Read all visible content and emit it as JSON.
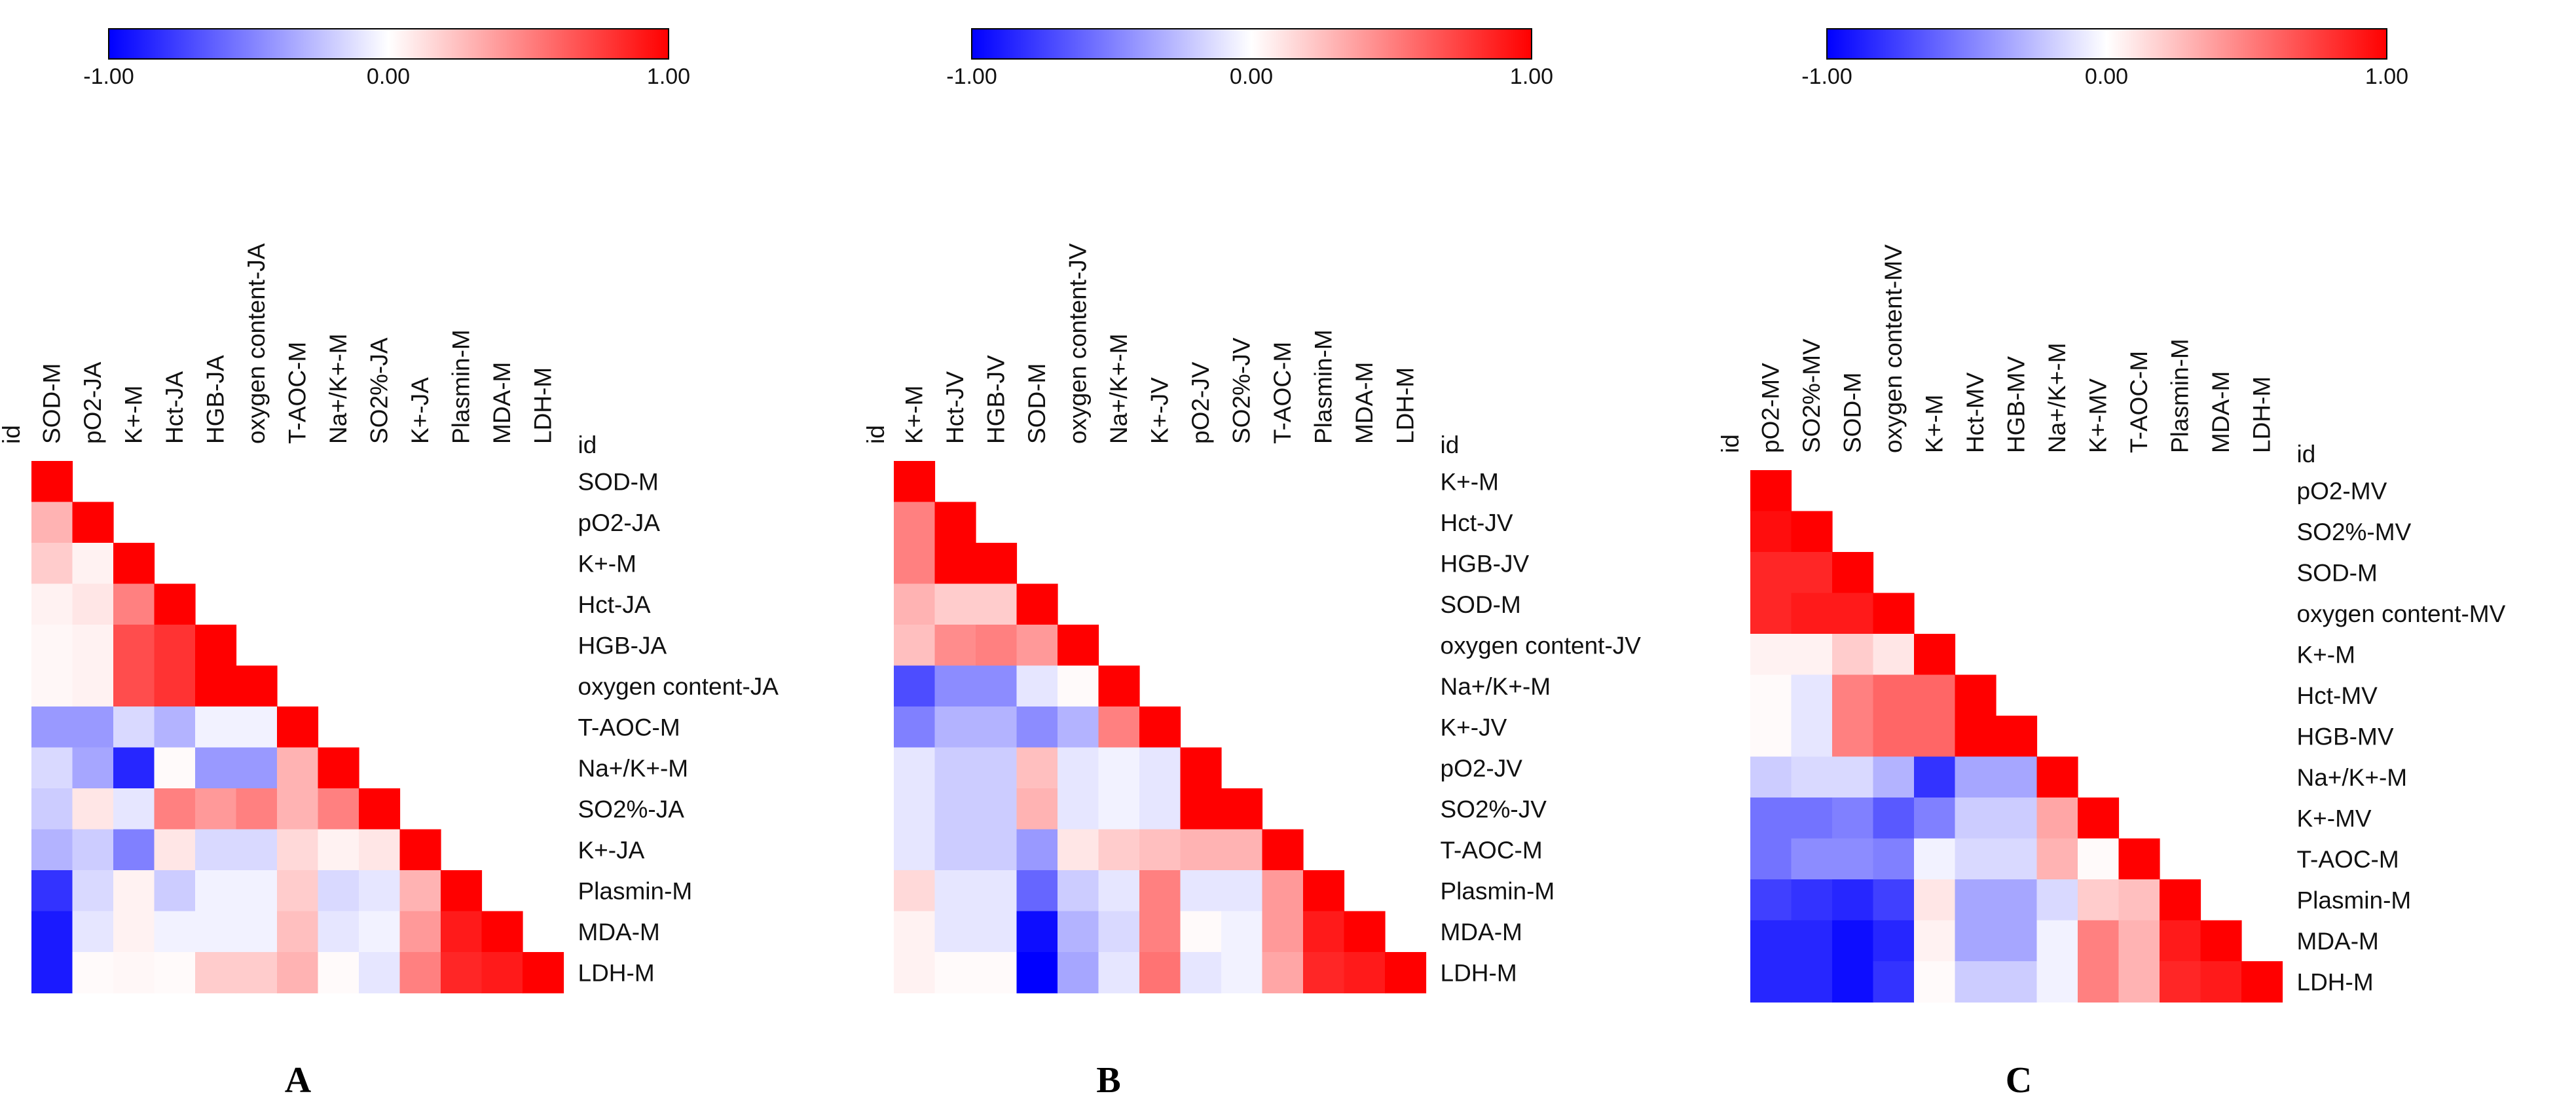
{
  "colorscale": {
    "min_label": "-1.00",
    "mid_label": "0.00",
    "max_label": "1.00",
    "min": -1,
    "max": 1,
    "colors": [
      "#0000ff",
      "#ffffff",
      "#ff0000"
    ]
  },
  "corner_label": "id",
  "chart_data": [
    {
      "type": "heatmap",
      "panel": "A",
      "title": "",
      "variables": [
        "SOD-M",
        "pO2-JA",
        "K+-M",
        "Hct-JA",
        "HGB-JA",
        "oxygen content-JA",
        "T-AOC-M",
        "Na+/K+-M",
        "SO2%-JA",
        "K+-JA",
        "Plasmin-M",
        "MDA-M",
        "LDH-M"
      ],
      "matrix": [
        [
          1
        ],
        [
          0.3,
          1
        ],
        [
          0.2,
          0.05,
          1
        ],
        [
          0.05,
          0.1,
          0.5,
          1
        ],
        [
          0.03,
          0.05,
          0.7,
          0.8,
          1
        ],
        [
          0.03,
          0.05,
          0.7,
          0.8,
          1,
          1
        ],
        [
          -0.4,
          -0.4,
          -0.15,
          -0.3,
          -0.05,
          -0.05,
          1
        ],
        [
          -0.15,
          -0.35,
          -0.85,
          0.02,
          -0.4,
          -0.4,
          0.3,
          1
        ],
        [
          -0.2,
          0.1,
          -0.1,
          0.5,
          0.4,
          0.5,
          0.3,
          0.5,
          1
        ],
        [
          -0.3,
          -0.2,
          -0.5,
          0.1,
          -0.15,
          -0.15,
          0.15,
          0.05,
          0.1,
          1
        ],
        [
          -0.8,
          -0.15,
          0.05,
          -0.2,
          -0.05,
          -0.05,
          0.2,
          -0.15,
          -0.1,
          0.3,
          1
        ],
        [
          -0.9,
          -0.1,
          0.05,
          -0.05,
          -0.05,
          -0.05,
          0.25,
          -0.1,
          -0.05,
          0.4,
          0.9,
          1
        ],
        [
          -0.9,
          0.02,
          0.03,
          0.02,
          0.2,
          0.2,
          0.3,
          0.02,
          -0.1,
          0.5,
          0.85,
          0.9,
          1
        ]
      ]
    },
    {
      "type": "heatmap",
      "panel": "B",
      "title": "",
      "variables": [
        "K+-M",
        "Hct-JV",
        "HGB-JV",
        "SOD-M",
        "oxygen content-JV",
        "Na+/K+-M",
        "K+-JV",
        "pO2-JV",
        "SO2%-JV",
        "T-AOC-M",
        "Plasmin-M",
        "MDA-M",
        "LDH-M"
      ],
      "matrix": [
        [
          1
        ],
        [
          0.5,
          1
        ],
        [
          0.5,
          1,
          1
        ],
        [
          0.3,
          0.2,
          0.2,
          1
        ],
        [
          0.25,
          0.45,
          0.5,
          0.4,
          1
        ],
        [
          -0.7,
          -0.45,
          -0.45,
          -0.1,
          0.02,
          1
        ],
        [
          -0.5,
          -0.3,
          -0.3,
          -0.45,
          -0.3,
          0.5,
          1
        ],
        [
          -0.1,
          -0.2,
          -0.2,
          0.25,
          -0.1,
          -0.05,
          -0.1,
          1
        ],
        [
          -0.1,
          -0.2,
          -0.2,
          0.3,
          -0.1,
          -0.05,
          -0.1,
          1,
          1
        ],
        [
          -0.1,
          -0.2,
          -0.2,
          -0.4,
          0.1,
          0.2,
          0.25,
          0.3,
          0.3,
          1
        ],
        [
          0.15,
          -0.1,
          -0.1,
          -0.6,
          -0.2,
          -0.1,
          0.5,
          -0.1,
          -0.1,
          0.4,
          1
        ],
        [
          0.05,
          -0.1,
          -0.1,
          -0.95,
          -0.3,
          -0.15,
          0.5,
          0.02,
          -0.05,
          0.4,
          0.9,
          1
        ],
        [
          0.05,
          0.02,
          0.02,
          -1.0,
          -0.35,
          -0.1,
          0.55,
          -0.1,
          -0.05,
          0.35,
          0.85,
          0.9,
          1
        ]
      ]
    },
    {
      "type": "heatmap",
      "panel": "C",
      "title": "",
      "variables": [
        "pO2-MV",
        "SO2%-MV",
        "SOD-M",
        "oxygen content-MV",
        "K+-M",
        "Hct-MV",
        "HGB-MV",
        "Na+/K+-M",
        "K+-MV",
        "T-AOC-M",
        "Plasmin-M",
        "MDA-M",
        "LDH-M"
      ],
      "matrix": [
        [
          1
        ],
        [
          0.95,
          1
        ],
        [
          0.85,
          0.85,
          1
        ],
        [
          0.85,
          0.9,
          0.9,
          1
        ],
        [
          0.05,
          0.05,
          0.2,
          0.1,
          1
        ],
        [
          0.02,
          -0.1,
          0.5,
          0.6,
          0.6,
          1
        ],
        [
          0.02,
          -0.1,
          0.5,
          0.6,
          0.6,
          1,
          1
        ],
        [
          -0.2,
          -0.15,
          -0.15,
          -0.3,
          -0.8,
          -0.35,
          -0.35,
          1
        ],
        [
          -0.55,
          -0.55,
          -0.5,
          -0.65,
          -0.5,
          -0.2,
          -0.2,
          0.35,
          1
        ],
        [
          -0.55,
          -0.45,
          -0.45,
          -0.5,
          -0.05,
          -0.15,
          -0.15,
          0.3,
          0.02,
          1
        ],
        [
          -0.75,
          -0.8,
          -0.85,
          -0.75,
          0.1,
          -0.35,
          -0.35,
          -0.15,
          0.2,
          0.25,
          1
        ],
        [
          -0.85,
          -0.85,
          -0.95,
          -0.85,
          0.05,
          -0.35,
          -0.35,
          -0.05,
          0.5,
          0.3,
          0.9,
          1
        ],
        [
          -0.85,
          -0.85,
          -0.95,
          -0.8,
          0.02,
          -0.2,
          -0.2,
          -0.05,
          0.5,
          0.3,
          0.85,
          0.9,
          1
        ]
      ]
    }
  ]
}
